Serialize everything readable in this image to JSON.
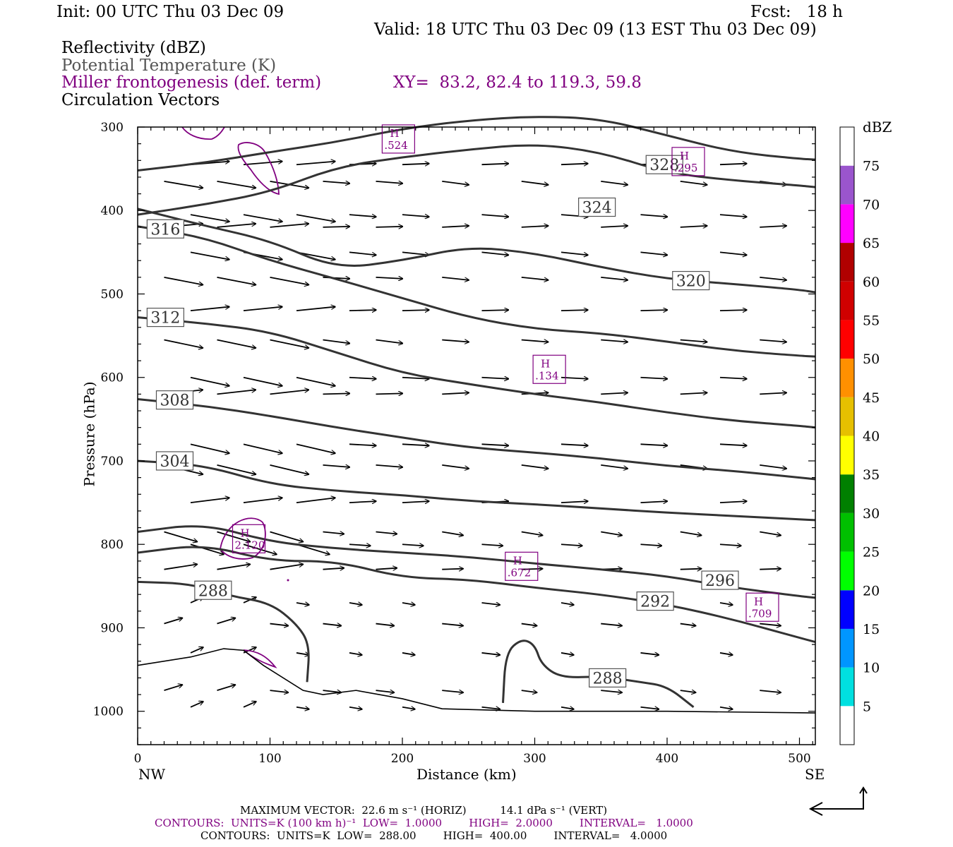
{
  "header": {
    "init": "Init: 00 UTC Thu 03 Dec 09",
    "fcst": "Fcst:   18 h",
    "valid": "Valid: 18 UTC Thu 03 Dec 09 (13 EST Thu 03 Dec 09)",
    "field1": "Reflectivity (dBZ)",
    "field2": "Potential Temperature (K)",
    "field3": "Miller frontogenesis (def. term)",
    "xy": "XY=  83.2, 82.4 to 119.3, 59.8",
    "field4": "Circulation Vectors"
  },
  "footer": {
    "max_vector": "MAXIMUM VECTOR:  22.6 m s⁻¹ (HORIZ)          14.1 dPa s⁻¹ (VERT)",
    "contours_fgen": "CONTOURS:  UNITS=K (100 km h)⁻¹  LOW=  1.0000        HIGH=  2.0000        INTERVAL=   1.0000",
    "contours_theta": "CONTOURS:  UNITS=K  LOW=  288.00        HIGH=  400.00        INTERVAL=   4.0000"
  },
  "colors": {
    "theta": "#333333",
    "fgen": "#800080",
    "vectors": "#000000"
  },
  "chart_data": {
    "type": "cross-section",
    "xlabel": "Distance (km)",
    "ylabel": "Pressure (hPa)",
    "xlim": [
      0,
      512
    ],
    "ylim": [
      300,
      1040
    ],
    "y_scale": "linear, inverted",
    "x_ticks": [
      0,
      100,
      200,
      300,
      400,
      500
    ],
    "y_ticks": [
      300,
      400,
      500,
      600,
      700,
      800,
      900,
      1000
    ],
    "x_end_labels": {
      "left": "NW",
      "right": "SE"
    },
    "colorbar": {
      "title": "dBZ",
      "levels": [
        5,
        10,
        15,
        20,
        25,
        30,
        35,
        40,
        45,
        50,
        55,
        60,
        65,
        70,
        75
      ],
      "colors": [
        "#ffffff",
        "#00e0e0",
        "#0096ff",
        "#0000ff",
        "#00ff00",
        "#00c000",
        "#008000",
        "#ffff00",
        "#e6c000",
        "#ff9000",
        "#ff0000",
        "#d00000",
        "#b00000",
        "#ff00ff",
        "#9a55cd",
        "#ffffff"
      ]
    },
    "theta_contours": [
      {
        "value": 328,
        "label": "328",
        "label_pos": [
          398,
          345
        ],
        "points": [
          [
            0,
            352
          ],
          [
            50,
            343
          ],
          [
            100,
            330
          ],
          [
            150,
            318
          ],
          [
            200,
            302
          ],
          [
            250,
            292
          ],
          [
            300,
            287
          ],
          [
            350,
            290
          ],
          [
            400,
            310
          ],
          [
            450,
            330
          ],
          [
            500,
            338
          ],
          [
            512,
            339
          ]
        ]
      },
      {
        "value": 324,
        "label": "324",
        "label_pos": [
          347,
          396
        ],
        "points": [
          [
            0,
            405
          ],
          [
            50,
            393
          ],
          [
            100,
            378
          ],
          [
            150,
            348
          ],
          [
            200,
            336
          ],
          [
            250,
            327
          ],
          [
            300,
            320
          ],
          [
            350,
            330
          ],
          [
            400,
            355
          ],
          [
            450,
            364
          ],
          [
            500,
            370
          ],
          [
            512,
            372
          ]
        ]
      },
      {
        "value": 320,
        "label": "320",
        "label_pos": [
          418,
          484
        ],
        "points": [
          [
            0,
            398
          ],
          [
            50,
            418
          ],
          [
            100,
            436
          ],
          [
            150,
            470
          ],
          [
            200,
            460
          ],
          [
            250,
            443
          ],
          [
            300,
            451
          ],
          [
            350,
            468
          ],
          [
            400,
            482
          ],
          [
            450,
            488
          ],
          [
            500,
            495
          ],
          [
            512,
            498
          ]
        ]
      },
      {
        "value": 316,
        "label": "316",
        "label_pos": [
          21,
          422
        ],
        "points": [
          [
            0,
            419
          ],
          [
            50,
            432
          ],
          [
            100,
            460
          ],
          [
            150,
            482
          ],
          [
            200,
            505
          ],
          [
            250,
            528
          ],
          [
            300,
            542
          ],
          [
            350,
            547
          ],
          [
            400,
            557
          ],
          [
            450,
            568
          ],
          [
            500,
            574
          ],
          [
            512,
            575
          ]
        ]
      },
      {
        "value": 312,
        "label": "312",
        "label_pos": [
          21,
          528
        ],
        "points": [
          [
            0,
            528
          ],
          [
            50,
            535
          ],
          [
            100,
            545
          ],
          [
            150,
            570
          ],
          [
            200,
            595
          ],
          [
            250,
            608
          ],
          [
            300,
            620
          ],
          [
            350,
            630
          ],
          [
            400,
            642
          ],
          [
            450,
            652
          ],
          [
            500,
            658
          ],
          [
            512,
            660
          ]
        ]
      },
      {
        "value": 308,
        "label": "308",
        "label_pos": [
          28,
          627
        ],
        "points": [
          [
            0,
            626
          ],
          [
            50,
            634
          ],
          [
            100,
            646
          ],
          [
            150,
            660
          ],
          [
            200,
            672
          ],
          [
            250,
            684
          ],
          [
            300,
            690
          ],
          [
            350,
            697
          ],
          [
            400,
            706
          ],
          [
            450,
            712
          ],
          [
            500,
            720
          ],
          [
            512,
            722
          ]
        ]
      },
      {
        "value": 304,
        "label": "304",
        "label_pos": [
          28,
          700
        ],
        "points": [
          [
            0,
            700
          ],
          [
            50,
            705
          ],
          [
            100,
            728
          ],
          [
            150,
            736
          ],
          [
            200,
            741
          ],
          [
            250,
            748
          ],
          [
            300,
            752
          ],
          [
            350,
            757
          ],
          [
            400,
            762
          ],
          [
            450,
            766
          ],
          [
            500,
            770
          ],
          [
            512,
            771
          ]
        ]
      },
      {
        "value": 296,
        "label": "296",
        "label_pos": [
          440,
          843
        ],
        "points": [
          [
            0,
            785
          ],
          [
            50,
            775
          ],
          [
            100,
            797
          ],
          [
            150,
            805
          ],
          [
            200,
            810
          ],
          [
            250,
            815
          ],
          [
            300,
            823
          ],
          [
            350,
            830
          ],
          [
            400,
            838
          ],
          [
            450,
            852
          ],
          [
            500,
            862
          ],
          [
            512,
            864
          ]
        ]
      },
      {
        "value": 292,
        "label": "292",
        "label_pos": [
          391,
          868
        ],
        "points": [
          [
            0,
            810
          ],
          [
            50,
            800
          ],
          [
            100,
            820
          ],
          [
            150,
            820
          ],
          [
            200,
            840
          ],
          [
            250,
            842
          ],
          [
            300,
            852
          ],
          [
            350,
            860
          ],
          [
            400,
            872
          ],
          [
            450,
            890
          ],
          [
            500,
            912
          ],
          [
            512,
            917
          ]
        ]
      },
      {
        "value": 288,
        "label": "288",
        "label_pos": [
          57,
          855
        ],
        "points": [
          [
            0,
            845
          ],
          [
            40,
            847
          ],
          [
            70,
            862
          ],
          [
            100,
            870
          ],
          [
            120,
            895
          ],
          [
            130,
            920
          ],
          [
            128,
            965
          ]
        ]
      },
      {
        "value": 288,
        "label": "288",
        "label_pos": [
          355,
          960
        ],
        "points": [
          [
            276,
            990
          ],
          [
            278,
            930
          ],
          [
            290,
            913
          ],
          [
            300,
            920
          ],
          [
            305,
            944
          ],
          [
            320,
            960
          ],
          [
            350,
            958
          ],
          [
            380,
            965
          ],
          [
            400,
            970
          ],
          [
            420,
            995
          ]
        ]
      }
    ],
    "terrain": [
      [
        0,
        945
      ],
      [
        40,
        935
      ],
      [
        65,
        925
      ],
      [
        80,
        927
      ],
      [
        95,
        945
      ],
      [
        125,
        975
      ],
      [
        140,
        980
      ],
      [
        165,
        975
      ],
      [
        200,
        985
      ],
      [
        230,
        997
      ],
      [
        300,
        1000
      ],
      [
        400,
        1000
      ],
      [
        512,
        1002
      ]
    ],
    "frontogenesis_maxima": [
      {
        "label": "H",
        "value": ".524",
        "x": 197,
        "p": 316
      },
      {
        "label": "H",
        "value": ".295",
        "x": 416,
        "p": 343
      },
      {
        "label": "H",
        "value": ".134",
        "x": 311,
        "p": 592
      },
      {
        "label": "H",
        "value": "2.120",
        "x": 84,
        "p": 795
      },
      {
        "label": "H",
        "value": ".672",
        "x": 290,
        "p": 828
      },
      {
        "label": "H",
        "value": ".709",
        "x": 472,
        "p": 877
      }
    ]
  }
}
